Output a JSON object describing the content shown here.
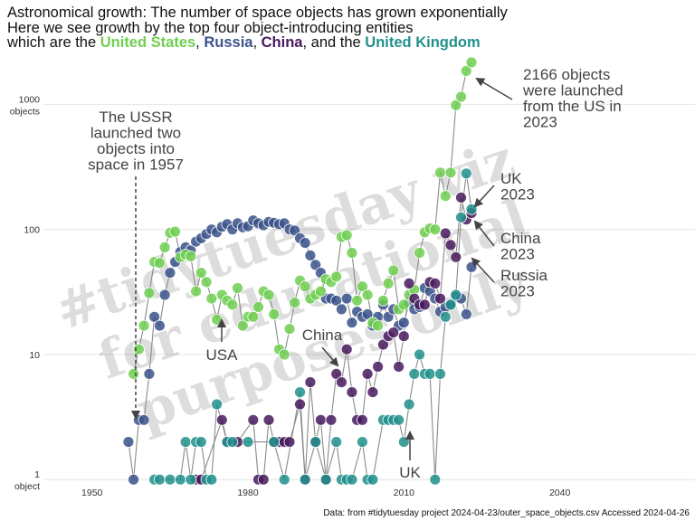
{
  "title": {
    "line1": "Astronomical growth: The number of space objects has grown exponentially",
    "line2": "Here we see growth by the top four object-introducing entities",
    "line3_prefix": "which are the ",
    "us": "United States",
    "sep1": ", ",
    "russia": "Russia",
    "sep2": ", ",
    "china": "China",
    "sep3": ", and the ",
    "uk": "United Kingdom"
  },
  "caption": "Data: from #tidytuesday project 2024-04-23/outer_space_objects.csv Accessed 2024-04-26",
  "watermark": [
    "#tidytuesday viz",
    "for educational",
    "purposes only"
  ],
  "colors": {
    "us": "#6fcf50",
    "russia": "#3b528b",
    "china": "#481a5e",
    "uk": "#21918c",
    "grid": "#e4e4e4",
    "line": "#8a8a8a",
    "arrow": "#444444",
    "text": "#444444"
  },
  "chart_data": {
    "type": "scatter",
    "title": "Astronomical growth: The number of space objects has grown exponentially",
    "xlabel": "",
    "ylabel": "",
    "xlim": [
      1941,
      2066
    ],
    "ylim": [
      0.85,
      2600
    ],
    "yscale": "log",
    "x_ticks": [
      1950,
      1980,
      2010,
      2040
    ],
    "y_ticks": [
      {
        "value": 1,
        "label": "1",
        "sub": "object"
      },
      {
        "value": 10,
        "label": "10",
        "sub": ""
      },
      {
        "value": 100,
        "label": "100",
        "sub": ""
      },
      {
        "value": 1000,
        "label": "1000",
        "sub": "objects"
      }
    ],
    "series": [
      {
        "name": "Russia",
        "key": "russia",
        "points": [
          [
            1957,
            2
          ],
          [
            1958,
            1
          ],
          [
            1959,
            3
          ],
          [
            1960,
            3
          ],
          [
            1961,
            7
          ],
          [
            1962,
            20
          ],
          [
            1963,
            17
          ],
          [
            1964,
            30
          ],
          [
            1965,
            45
          ],
          [
            1966,
            55
          ],
          [
            1967,
            66
          ],
          [
            1968,
            72
          ],
          [
            1969,
            68
          ],
          [
            1970,
            80
          ],
          [
            1971,
            85
          ],
          [
            1972,
            92
          ],
          [
            1973,
            100
          ],
          [
            1974,
            95
          ],
          [
            1975,
            105
          ],
          [
            1976,
            110
          ],
          [
            1977,
            100
          ],
          [
            1978,
            112
          ],
          [
            1979,
            104
          ],
          [
            1980,
            106
          ],
          [
            1981,
            118
          ],
          [
            1982,
            112
          ],
          [
            1983,
            108
          ],
          [
            1984,
            115
          ],
          [
            1985,
            113
          ],
          [
            1986,
            110
          ],
          [
            1987,
            112
          ],
          [
            1988,
            100
          ],
          [
            1989,
            98
          ],
          [
            1990,
            85
          ],
          [
            1991,
            78
          ],
          [
            1992,
            62
          ],
          [
            1993,
            52
          ],
          [
            1994,
            45
          ],
          [
            1995,
            28
          ],
          [
            1996,
            28
          ],
          [
            1997,
            27
          ],
          [
            1998,
            23
          ],
          [
            1999,
            28
          ],
          [
            2000,
            18
          ],
          [
            2001,
            22
          ],
          [
            2002,
            20
          ],
          [
            2003,
            21
          ],
          [
            2004,
            17
          ],
          [
            2005,
            20
          ],
          [
            2006,
            25
          ],
          [
            2007,
            20
          ],
          [
            2008,
            23
          ],
          [
            2009,
            17
          ],
          [
            2010,
            18
          ],
          [
            2011,
            26
          ],
          [
            2012,
            23
          ],
          [
            2013,
            24
          ],
          [
            2014,
            34
          ],
          [
            2015,
            32
          ],
          [
            2016,
            28
          ],
          [
            2017,
            22
          ],
          [
            2018,
            24
          ],
          [
            2019,
            25
          ],
          [
            2020,
            29
          ],
          [
            2021,
            28
          ],
          [
            2022,
            21
          ],
          [
            2023,
            50
          ]
        ]
      },
      {
        "name": "United States",
        "key": "us",
        "points": [
          [
            1958,
            7
          ],
          [
            1959,
            11
          ],
          [
            1960,
            17
          ],
          [
            1961,
            31
          ],
          [
            1962,
            55
          ],
          [
            1963,
            54
          ],
          [
            1964,
            72
          ],
          [
            1965,
            94
          ],
          [
            1966,
            96
          ],
          [
            1967,
            60
          ],
          [
            1968,
            63
          ],
          [
            1969,
            61
          ],
          [
            1970,
            32
          ],
          [
            1971,
            45
          ],
          [
            1972,
            38
          ],
          [
            1973,
            28
          ],
          [
            1974,
            19
          ],
          [
            1975,
            30
          ],
          [
            1976,
            27
          ],
          [
            1977,
            25
          ],
          [
            1978,
            34
          ],
          [
            1979,
            17
          ],
          [
            1980,
            20
          ],
          [
            1981,
            20
          ],
          [
            1982,
            24
          ],
          [
            1983,
            32
          ],
          [
            1984,
            30
          ],
          [
            1985,
            21
          ],
          [
            1986,
            11
          ],
          [
            1987,
            10
          ],
          [
            1988,
            16
          ],
          [
            1989,
            26
          ],
          [
            1990,
            39
          ],
          [
            1991,
            35
          ],
          [
            1992,
            28
          ],
          [
            1993,
            30
          ],
          [
            1994,
            32
          ],
          [
            1995,
            40
          ],
          [
            1996,
            38
          ],
          [
            1997,
            42
          ],
          [
            1998,
            87
          ],
          [
            1999,
            90
          ],
          [
            2000,
            65
          ],
          [
            2001,
            27
          ],
          [
            2002,
            35
          ],
          [
            2003,
            30
          ],
          [
            2004,
            18
          ],
          [
            2005,
            17
          ],
          [
            2006,
            27
          ],
          [
            2007,
            37
          ],
          [
            2008,
            47
          ],
          [
            2009,
            23
          ],
          [
            2010,
            25
          ],
          [
            2011,
            30
          ],
          [
            2012,
            33
          ],
          [
            2013,
            65
          ],
          [
            2014,
            95
          ],
          [
            2015,
            102
          ],
          [
            2016,
            100
          ],
          [
            2017,
            285
          ],
          [
            2018,
            185
          ],
          [
            2019,
            285
          ],
          [
            2020,
            985
          ],
          [
            2021,
            1150
          ],
          [
            2022,
            1850
          ],
          [
            2023,
            2166
          ]
        ]
      },
      {
        "name": "China",
        "key": "china",
        "points": [
          [
            1970,
            1
          ],
          [
            1971,
            1
          ],
          [
            1975,
            3
          ],
          [
            1976,
            2
          ],
          [
            1978,
            2
          ],
          [
            1981,
            3
          ],
          [
            1982,
            1
          ],
          [
            1983,
            1
          ],
          [
            1984,
            3
          ],
          [
            1985,
            2
          ],
          [
            1986,
            2
          ],
          [
            1987,
            2
          ],
          [
            1988,
            2
          ],
          [
            1990,
            4
          ],
          [
            1991,
            1
          ],
          [
            1992,
            6
          ],
          [
            1993,
            2
          ],
          [
            1994,
            3
          ],
          [
            1995,
            1
          ],
          [
            1996,
            3
          ],
          [
            1997,
            7
          ],
          [
            1998,
            6
          ],
          [
            1999,
            11
          ],
          [
            2000,
            5
          ],
          [
            2001,
            3
          ],
          [
            2002,
            3
          ],
          [
            2003,
            7
          ],
          [
            2004,
            5
          ],
          [
            2005,
            8
          ],
          [
            2006,
            12
          ],
          [
            2007,
            14
          ],
          [
            2008,
            15
          ],
          [
            2009,
            8
          ],
          [
            2010,
            14
          ],
          [
            2011,
            37
          ],
          [
            2012,
            28
          ],
          [
            2013,
            25
          ],
          [
            2014,
            25
          ],
          [
            2015,
            38
          ],
          [
            2016,
            37
          ],
          [
            2017,
            28
          ],
          [
            2018,
            93
          ],
          [
            2019,
            75
          ],
          [
            2020,
            60
          ],
          [
            2021,
            180
          ],
          [
            2022,
            120
          ],
          [
            2023,
            135
          ]
        ]
      },
      {
        "name": "United Kingdom",
        "key": "uk",
        "points": [
          [
            1962,
            1
          ],
          [
            1963,
            1
          ],
          [
            1965,
            1
          ],
          [
            1967,
            1
          ],
          [
            1968,
            2
          ],
          [
            1969,
            1
          ],
          [
            1970,
            2
          ],
          [
            1971,
            2
          ],
          [
            1972,
            1
          ],
          [
            1973,
            1
          ],
          [
            1974,
            4
          ],
          [
            1976,
            2
          ],
          [
            1977,
            2
          ],
          [
            1980,
            2
          ],
          [
            1985,
            2
          ],
          [
            1987,
            1
          ],
          [
            1990,
            5
          ],
          [
            1991,
            1
          ],
          [
            1993,
            2
          ],
          [
            1995,
            1
          ],
          [
            1997,
            2
          ],
          [
            1998,
            1
          ],
          [
            1999,
            1
          ],
          [
            2000,
            1
          ],
          [
            2002,
            2
          ],
          [
            2003,
            1
          ],
          [
            2004,
            1
          ],
          [
            2006,
            3
          ],
          [
            2007,
            3
          ],
          [
            2008,
            3
          ],
          [
            2009,
            3
          ],
          [
            2010,
            2
          ],
          [
            2011,
            4
          ],
          [
            2012,
            7
          ],
          [
            2013,
            10
          ],
          [
            2014,
            7
          ],
          [
            2015,
            7
          ],
          [
            2016,
            1
          ],
          [
            2017,
            7
          ],
          [
            2018,
            20
          ],
          [
            2019,
            25
          ],
          [
            2020,
            30
          ],
          [
            2021,
            125
          ],
          [
            2022,
            280
          ],
          [
            2023,
            145
          ]
        ]
      }
    ],
    "annotations": [
      {
        "text": [
          "The USSR",
          "launched two",
          "objects into",
          "space in 1957"
        ],
        "target": [
          1957,
          2
        ]
      },
      {
        "text": [
          "2166 objects",
          "were launched",
          "from the US in",
          "2023"
        ],
        "target": [
          2023,
          2166
        ]
      },
      {
        "text": [
          "UK",
          "2023"
        ],
        "target": [
          2023,
          145
        ]
      },
      {
        "text": [
          "China",
          "2023"
        ],
        "target": [
          2023,
          135
        ]
      },
      {
        "text": [
          "Russia",
          "2023"
        ],
        "target": [
          2023,
          50
        ]
      },
      {
        "text": [
          "USA"
        ],
        "target": [
          1974,
          19
        ]
      },
      {
        "text": [
          "China"
        ],
        "target": [
          2003,
          7
        ]
      },
      {
        "text": [
          "UK"
        ],
        "target": [
          2011,
          2
        ]
      }
    ]
  }
}
